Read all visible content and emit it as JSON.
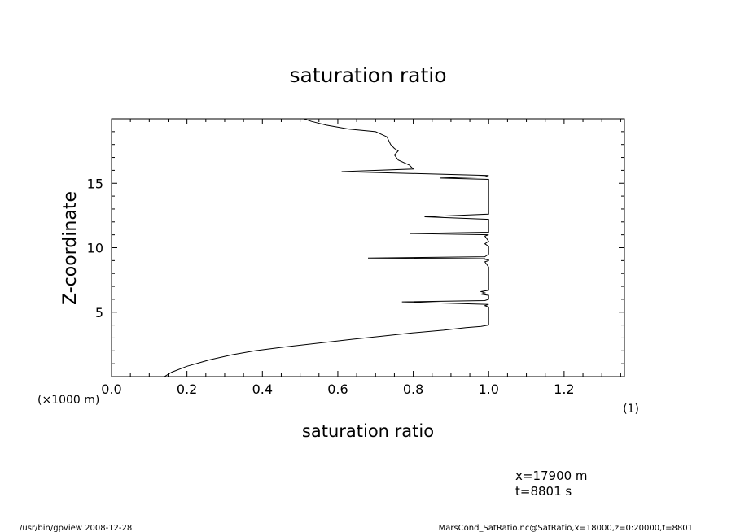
{
  "chart_data": {
    "type": "line",
    "title": "saturation ratio",
    "xlabel": "saturation ratio",
    "xunit": "(1)",
    "ylabel": "Z-coordinate",
    "yunit": "(×1000 m)",
    "xlim": [
      0.0,
      1.36
    ],
    "ylim": [
      0.0,
      20.0
    ],
    "xticks": [
      "0.0",
      "0.2",
      "0.4",
      "0.6",
      "0.8",
      "1.0",
      "1.2"
    ],
    "yticks": [
      "5",
      "10",
      "15"
    ],
    "grid": false,
    "series": [
      {
        "x": [
          0.14,
          0.16,
          0.2,
          0.26,
          0.32,
          0.38,
          0.46,
          0.55,
          0.64,
          0.72,
          0.8,
          0.88,
          0.94,
          0.98,
          1.0,
          1.0,
          1.0,
          1.0,
          0.99,
          1.0,
          0.77,
          0.99,
          1.0,
          1.0,
          1.0,
          0.98,
          0.99,
          0.98,
          1.0,
          1.0,
          1.0,
          1.0,
          1.0,
          0.99,
          1.0,
          1.0,
          0.99,
          0.99,
          0.68,
          0.99,
          1.0,
          1.0,
          1.0,
          0.99,
          1.0,
          0.99,
          1.0,
          0.79,
          1.0,
          1.0,
          1.0,
          1.0,
          0.83,
          1.0,
          1.0,
          1.0,
          1.0,
          1.0,
          1.0,
          1.0,
          1.0,
          0.87,
          0.99,
          1.0,
          0.61,
          0.8,
          0.79,
          0.76,
          0.75,
          0.76,
          0.75,
          0.74,
          0.73,
          0.7,
          0.63,
          0.57,
          0.53,
          0.51
        ],
        "y": [
          0.0,
          0.35,
          0.8,
          1.3,
          1.7,
          2.0,
          2.3,
          2.6,
          2.9,
          3.15,
          3.4,
          3.6,
          3.8,
          3.9,
          4.0,
          4.6,
          5.2,
          5.4,
          5.5,
          5.6,
          5.8,
          5.9,
          6.0,
          6.2,
          6.3,
          6.4,
          6.5,
          6.6,
          6.7,
          7.0,
          7.5,
          8.0,
          8.5,
          8.9,
          9.0,
          9.05,
          9.1,
          9.15,
          9.2,
          9.3,
          9.5,
          9.9,
          10.1,
          10.3,
          10.5,
          10.9,
          11.0,
          11.1,
          11.2,
          11.5,
          11.9,
          12.2,
          12.4,
          12.6,
          12.8,
          13.5,
          14.0,
          14.5,
          15.0,
          15.2,
          15.3,
          15.4,
          15.5,
          15.6,
          15.9,
          16.1,
          16.4,
          16.8,
          17.2,
          17.5,
          17.7,
          18.0,
          18.6,
          19.0,
          19.2,
          19.5,
          19.8,
          20.0
        ]
      }
    ]
  },
  "info": {
    "x_line": "x=17900  m",
    "t_line": "t=8801  s"
  },
  "footer": {
    "left": "/usr/bin/gpview   2008-12-28",
    "right": "MarsCond_SatRatio.nc@SatRatio,x=18000,z=0:20000,t=8801"
  }
}
